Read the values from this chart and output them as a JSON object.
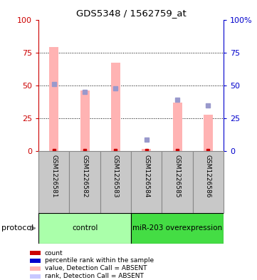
{
  "title": "GDS5348 / 1562759_at",
  "samples": [
    "GSM1226581",
    "GSM1226582",
    "GSM1226583",
    "GSM1226584",
    "GSM1226585",
    "GSM1226586"
  ],
  "pink_bar_heights": [
    79,
    46,
    67,
    2,
    37,
    28
  ],
  "blue_marker_values": [
    51,
    45,
    48,
    9,
    39,
    35
  ],
  "red_marker_values": [
    0.5,
    0.5,
    0.5,
    0.5,
    0.5,
    0.5
  ],
  "ylim": [
    0,
    100
  ],
  "yticks": [
    0,
    25,
    50,
    75,
    100
  ],
  "group_colors": [
    "#aaffaa",
    "#44dd44"
  ],
  "group_labels": [
    "control",
    "miR-203 overexpression"
  ],
  "group_sizes": [
    3,
    3
  ],
  "protocol_label": "protocol",
  "legend_items": [
    {
      "color": "#cc0000",
      "label": "count"
    },
    {
      "color": "#0000cc",
      "label": "percentile rank within the sample"
    },
    {
      "color": "#ffb3b3",
      "label": "value, Detection Call = ABSENT"
    },
    {
      "color": "#c8c8ff",
      "label": "rank, Detection Call = ABSENT"
    }
  ],
  "left_axis_color": "#cc0000",
  "right_axis_color": "#0000cc",
  "bar_color": "#ffb3b3",
  "blue_marker_color": "#9999cc",
  "red_marker_color": "#cc0000",
  "background_color": "#ffffff",
  "label_bg_color": "#c8c8c8",
  "label_border_color": "#888888"
}
